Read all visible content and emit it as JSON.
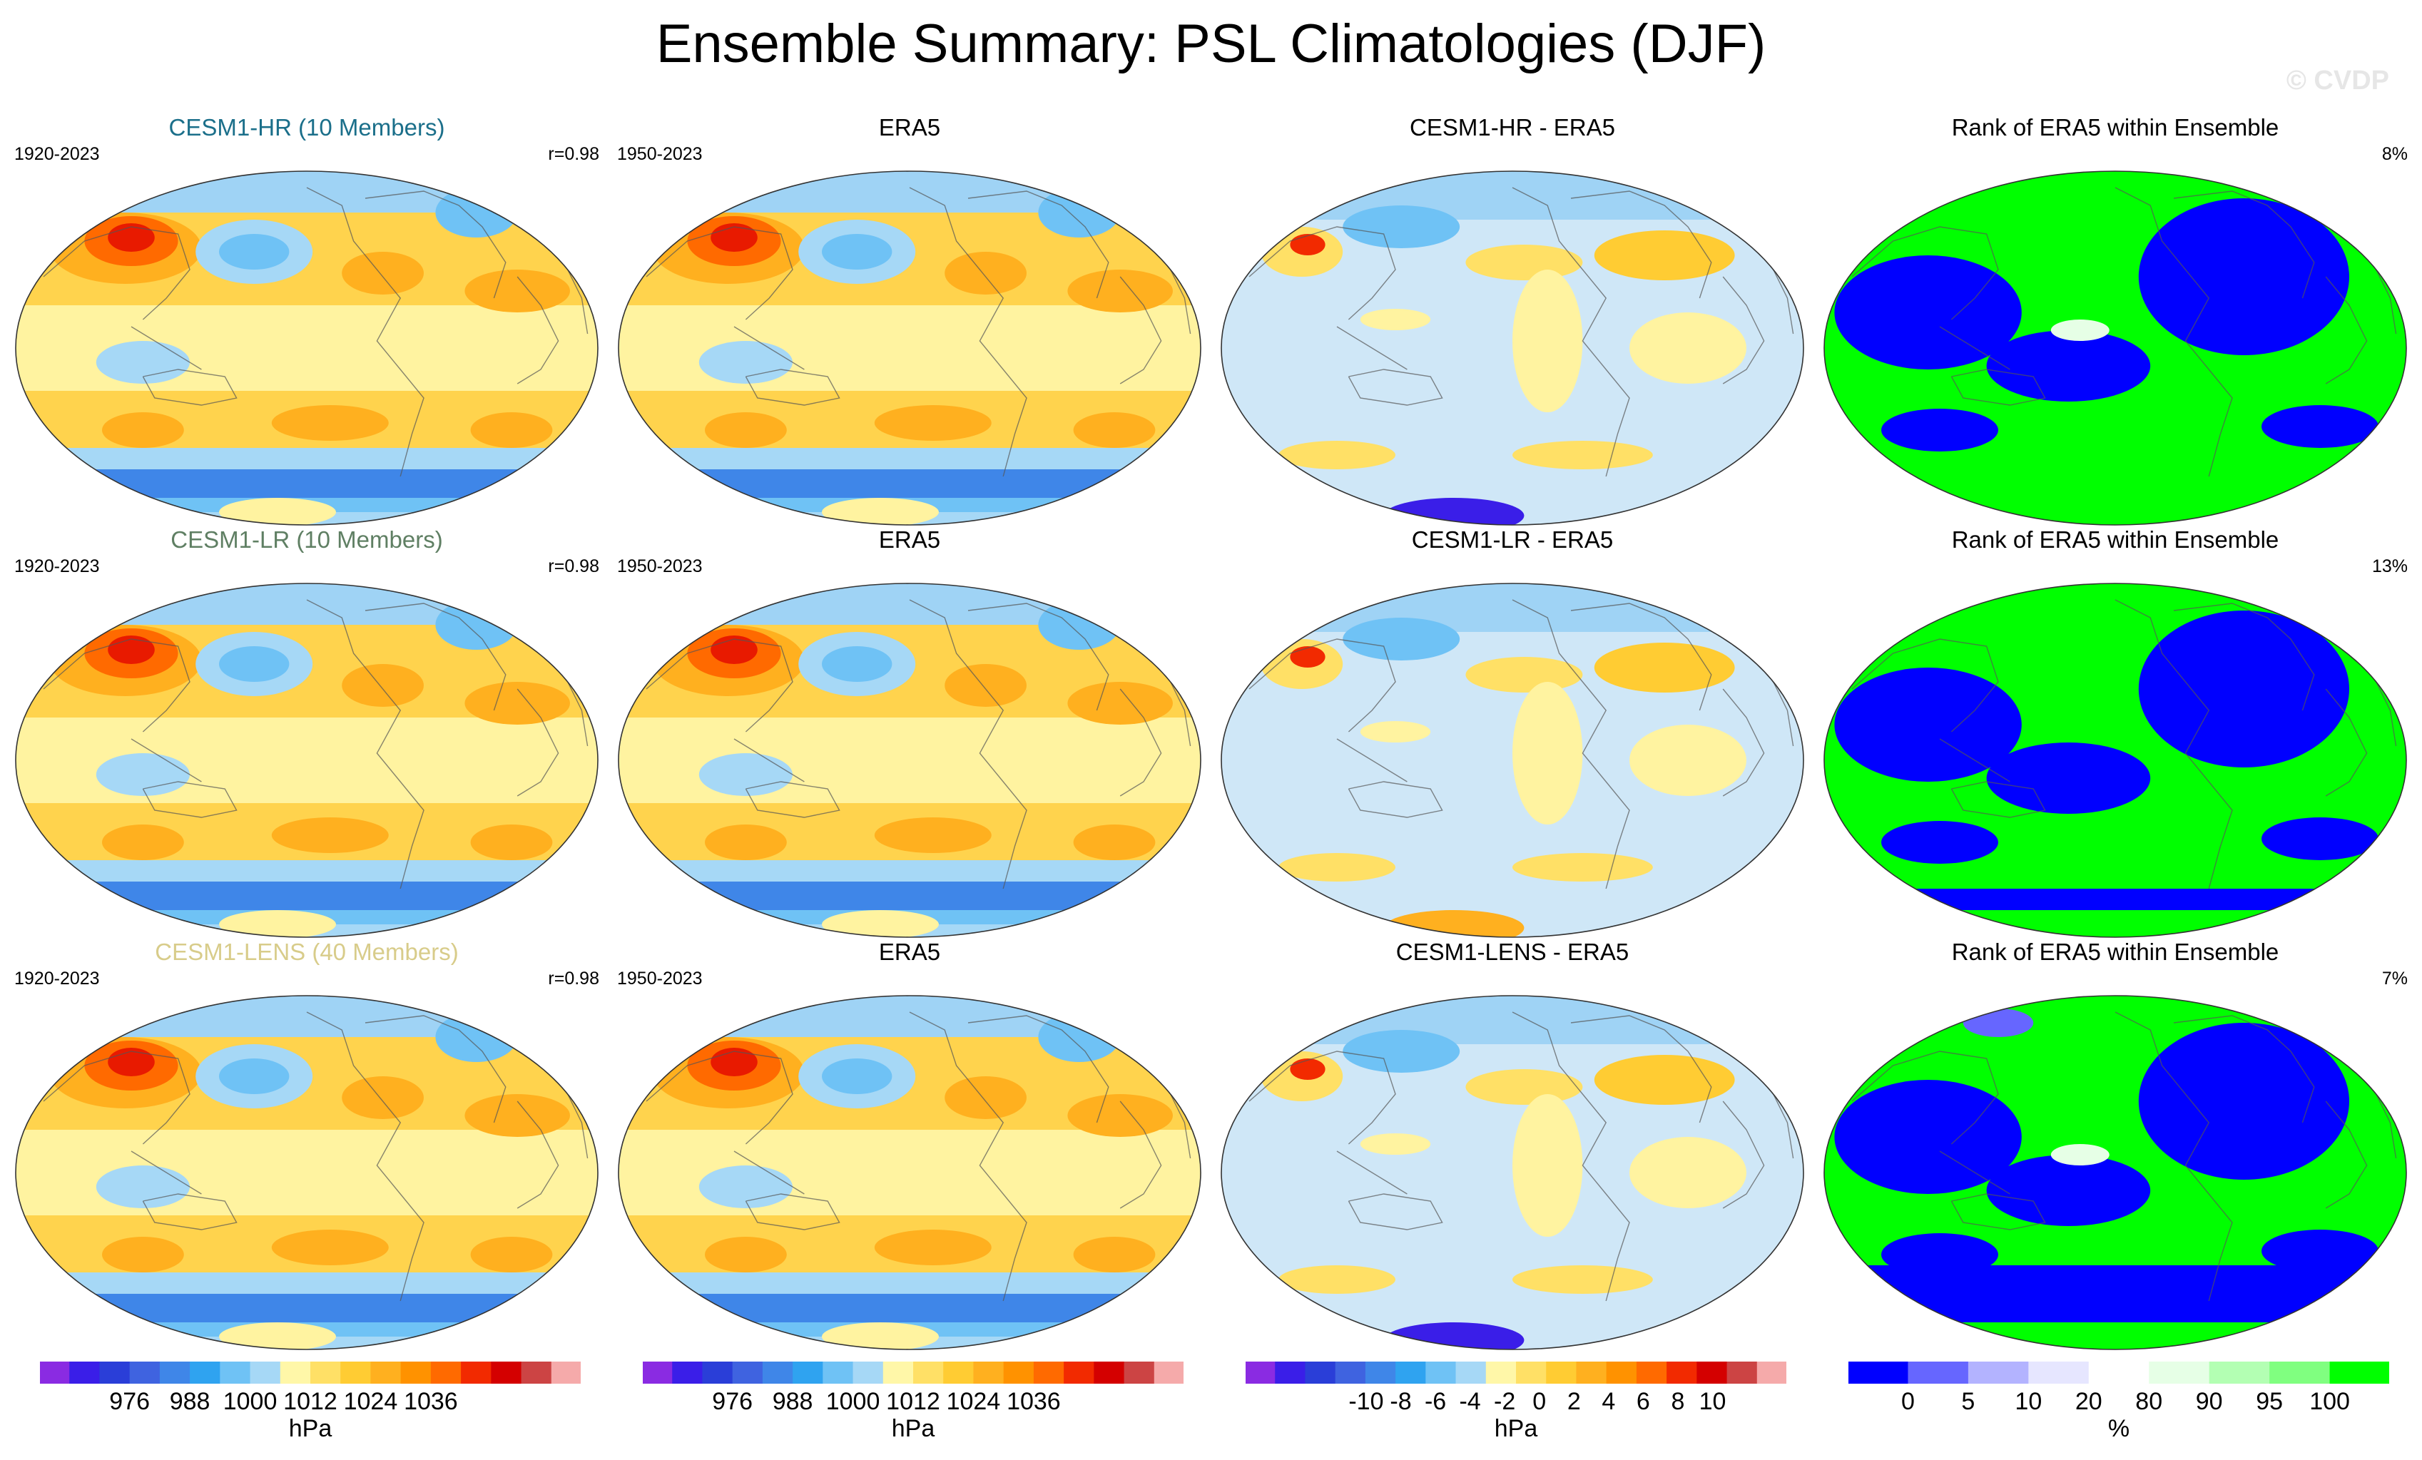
{
  "title": "Ensemble Summary: PSL Climatologies (DJF)",
  "watermark": "© CVDP",
  "rows": [
    {
      "model": "CESM1-HR (10 Members)",
      "model_years": "1920-2023",
      "r": "r=0.98",
      "obs": "ERA5",
      "obs_years": "1950-2023",
      "diff": "CESM1-HR - ERA5",
      "rank": "Rank of ERA5 within Ensemble",
      "rank_pct": "8%"
    },
    {
      "model": "CESM1-LR (10 Members)",
      "model_years": "1920-2023",
      "r": "r=0.98",
      "obs": "ERA5",
      "obs_years": "1950-2023",
      "diff": "CESM1-LR - ERA5",
      "rank": "Rank of ERA5 within Ensemble",
      "rank_pct": "13%"
    },
    {
      "model": "CESM1-LENS (40 Members)",
      "model_years": "1920-2023",
      "r": "r=0.98",
      "obs": "ERA5",
      "obs_years": "1950-2023",
      "diff": "CESM1-LENS - ERA5",
      "rank": "Rank of ERA5 within Ensemble",
      "rank_pct": "7%"
    }
  ],
  "chart_data": [
    {
      "type": "heatmap",
      "name": "climatology",
      "units": "hPa",
      "ticks": [
        "976",
        "988",
        "1000",
        "1012",
        "1024",
        "1036"
      ],
      "tick_values": [
        976,
        988,
        1000,
        1012,
        1024,
        1036
      ],
      "colors": [
        "#8a2be2",
        "#3a1ee8",
        "#2a3ed8",
        "#3f63e0",
        "#3f86e8",
        "#2fa3f0",
        "#6fc2f5",
        "#a6d8f6",
        "#fff7a8",
        "#ffe066",
        "#ffcc33",
        "#ffb01f",
        "#ff9200",
        "#ff6a00",
        "#f22a00",
        "#d40000",
        "#cc4444",
        "#f5aaaa"
      ]
    },
    {
      "type": "heatmap",
      "name": "difference",
      "units": "hPa",
      "ticks": [
        "-10",
        "-8",
        "-6",
        "-4",
        "-2",
        "0",
        "2",
        "4",
        "6",
        "8",
        "10"
      ],
      "tick_values": [
        -10,
        -8,
        -6,
        -4,
        -2,
        0,
        2,
        4,
        6,
        8,
        10
      ],
      "colors": [
        "#8a2be2",
        "#3a1ee8",
        "#2a3ed8",
        "#3f63e0",
        "#3f86e8",
        "#2fa3f0",
        "#6fc2f5",
        "#a6d8f6",
        "#fff7a8",
        "#ffe066",
        "#ffcc33",
        "#ffb01f",
        "#ff9200",
        "#ff6a00",
        "#f22a00",
        "#d40000",
        "#cc4444",
        "#f5aaaa"
      ]
    },
    {
      "type": "heatmap",
      "name": "rank",
      "units": "%",
      "ticks": [
        "0",
        "5",
        "10",
        "20",
        "80",
        "90",
        "95",
        "100"
      ],
      "tick_values": [
        0,
        5,
        10,
        20,
        80,
        90,
        95,
        100
      ],
      "colors": [
        "#0000ff",
        "#6666ff",
        "#b3b3ff",
        "#e6e6ff",
        "#ffffff",
        "#e6ffe6",
        "#b3ffb3",
        "#80ff80",
        "#00ff00"
      ]
    }
  ],
  "colors": {
    "ocean_default": "#fff3a0",
    "coast": "#555555",
    "rank_blue": "#0000ff",
    "rank_green": "#00ff00"
  }
}
